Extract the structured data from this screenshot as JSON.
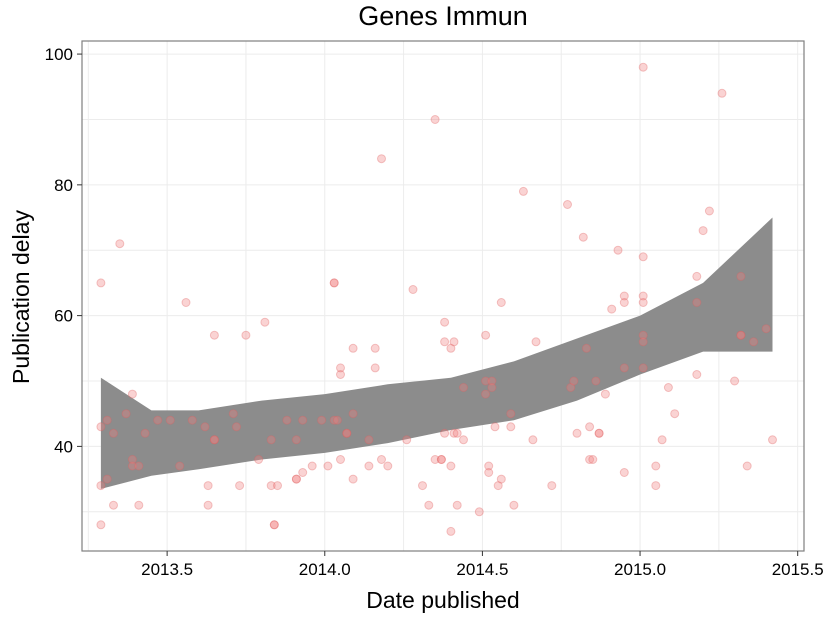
{
  "chart_data": {
    "type": "scatter",
    "title": "Genes Immun",
    "xlabel": "Date published",
    "ylabel": "Publication delay",
    "xlim": [
      2013.23,
      2015.52
    ],
    "ylim": [
      24,
      102
    ],
    "x_ticks": [
      "2013.5",
      "2014.0",
      "2014.5",
      "2015.0",
      "2015.5"
    ],
    "y_ticks": [
      "40",
      "60",
      "80",
      "100"
    ],
    "grid": true,
    "legend": "none",
    "colors": {
      "points": "#f08080",
      "point_stroke": "#e06060",
      "band": "#8c8c8c",
      "grid": "#ececec",
      "frame": "#7f7f7f"
    },
    "series": [
      {
        "points": [
          [
            2013.29,
            65
          ],
          [
            2013.29,
            43
          ],
          [
            2013.29,
            34
          ],
          [
            2013.29,
            28
          ],
          [
            2013.31,
            44
          ],
          [
            2013.31,
            35
          ],
          [
            2013.33,
            42
          ],
          [
            2013.33,
            31
          ],
          [
            2013.35,
            71
          ],
          [
            2013.37,
            45
          ],
          [
            2013.39,
            48
          ],
          [
            2013.39,
            38
          ],
          [
            2013.39,
            37
          ],
          [
            2013.41,
            37
          ],
          [
            2013.41,
            31
          ],
          [
            2013.43,
            42
          ],
          [
            2013.47,
            44
          ],
          [
            2013.51,
            44
          ],
          [
            2013.54,
            37
          ],
          [
            2013.56,
            62
          ],
          [
            2013.58,
            44
          ],
          [
            2013.62,
            43
          ],
          [
            2013.63,
            34
          ],
          [
            2013.63,
            31
          ],
          [
            2013.65,
            57
          ],
          [
            2013.65,
            41
          ],
          [
            2013.65,
            41
          ],
          [
            2013.71,
            45
          ],
          [
            2013.72,
            43
          ],
          [
            2013.73,
            34
          ],
          [
            2013.75,
            57
          ],
          [
            2013.79,
            38
          ],
          [
            2013.81,
            59
          ],
          [
            2013.83,
            41
          ],
          [
            2013.83,
            34
          ],
          [
            2013.84,
            28
          ],
          [
            2013.84,
            28
          ],
          [
            2013.85,
            34
          ],
          [
            2013.88,
            44
          ],
          [
            2013.91,
            41
          ],
          [
            2013.91,
            35
          ],
          [
            2013.91,
            35
          ],
          [
            2013.93,
            36
          ],
          [
            2013.93,
            44
          ],
          [
            2013.96,
            37
          ],
          [
            2013.99,
            44
          ],
          [
            2014.01,
            37
          ],
          [
            2014.03,
            65
          ],
          [
            2014.03,
            65
          ],
          [
            2014.03,
            44
          ],
          [
            2014.04,
            44
          ],
          [
            2014.05,
            51
          ],
          [
            2014.05,
            52
          ],
          [
            2014.05,
            38
          ],
          [
            2014.07,
            42
          ],
          [
            2014.07,
            42
          ],
          [
            2014.09,
            45
          ],
          [
            2014.09,
            55
          ],
          [
            2014.09,
            35
          ],
          [
            2014.14,
            41
          ],
          [
            2014.14,
            37
          ],
          [
            2014.16,
            55
          ],
          [
            2014.16,
            52
          ],
          [
            2014.18,
            84
          ],
          [
            2014.18,
            38
          ],
          [
            2014.2,
            37
          ],
          [
            2014.26,
            41
          ],
          [
            2014.28,
            64
          ],
          [
            2014.31,
            34
          ],
          [
            2014.33,
            31
          ],
          [
            2014.35,
            90
          ],
          [
            2014.35,
            38
          ],
          [
            2014.37,
            38
          ],
          [
            2014.37,
            38
          ],
          [
            2014.38,
            59
          ],
          [
            2014.38,
            56
          ],
          [
            2014.38,
            42
          ],
          [
            2014.4,
            55
          ],
          [
            2014.4,
            37
          ],
          [
            2014.4,
            27
          ],
          [
            2014.41,
            56
          ],
          [
            2014.41,
            42
          ],
          [
            2014.42,
            42
          ],
          [
            2014.42,
            31
          ],
          [
            2014.44,
            49
          ],
          [
            2014.44,
            41
          ],
          [
            2014.49,
            30
          ],
          [
            2014.51,
            57
          ],
          [
            2014.51,
            50
          ],
          [
            2014.51,
            48
          ],
          [
            2014.52,
            37
          ],
          [
            2014.52,
            36
          ],
          [
            2014.53,
            50
          ],
          [
            2014.53,
            49
          ],
          [
            2014.54,
            43
          ],
          [
            2014.55,
            34
          ],
          [
            2014.56,
            62
          ],
          [
            2014.56,
            35
          ],
          [
            2014.59,
            45
          ],
          [
            2014.59,
            43
          ],
          [
            2014.6,
            31
          ],
          [
            2014.63,
            79
          ],
          [
            2014.66,
            41
          ],
          [
            2014.67,
            56
          ],
          [
            2014.72,
            34
          ],
          [
            2014.77,
            77
          ],
          [
            2014.78,
            49
          ],
          [
            2014.79,
            50
          ],
          [
            2014.8,
            42
          ],
          [
            2014.82,
            72
          ],
          [
            2014.83,
            55
          ],
          [
            2014.84,
            43
          ],
          [
            2014.84,
            38
          ],
          [
            2014.85,
            38
          ],
          [
            2014.86,
            50
          ],
          [
            2014.87,
            42
          ],
          [
            2014.87,
            42
          ],
          [
            2014.89,
            48
          ],
          [
            2014.91,
            61
          ],
          [
            2014.93,
            70
          ],
          [
            2014.95,
            63
          ],
          [
            2014.95,
            62
          ],
          [
            2014.95,
            52
          ],
          [
            2014.95,
            36
          ],
          [
            2015.01,
            98
          ],
          [
            2015.01,
            69
          ],
          [
            2015.01,
            63
          ],
          [
            2015.01,
            62
          ],
          [
            2015.01,
            57
          ],
          [
            2015.01,
            56
          ],
          [
            2015.01,
            52
          ],
          [
            2015.05,
            37
          ],
          [
            2015.05,
            34
          ],
          [
            2015.07,
            41
          ],
          [
            2015.09,
            49
          ],
          [
            2015.11,
            45
          ],
          [
            2015.18,
            66
          ],
          [
            2015.18,
            62
          ],
          [
            2015.18,
            51
          ],
          [
            2015.2,
            73
          ],
          [
            2015.22,
            76
          ],
          [
            2015.26,
            94
          ],
          [
            2015.3,
            50
          ],
          [
            2015.32,
            66
          ],
          [
            2015.32,
            57
          ],
          [
            2015.32,
            57
          ],
          [
            2015.34,
            37
          ],
          [
            2015.36,
            56
          ],
          [
            2015.4,
            58
          ],
          [
            2015.42,
            41
          ]
        ]
      }
    ],
    "smooth": {
      "x": [
        2013.29,
        2013.45,
        2013.6,
        2013.8,
        2014.0,
        2014.2,
        2014.4,
        2014.6,
        2014.8,
        2015.0,
        2015.2,
        2015.42
      ],
      "lower": [
        33.5,
        35.5,
        36.5,
        38.0,
        39.0,
        40.5,
        42.5,
        44.0,
        47.0,
        51.0,
        54.5,
        54.5
      ],
      "upper": [
        50.5,
        45.5,
        45.5,
        47.0,
        48.0,
        49.5,
        50.5,
        53.0,
        56.5,
        60.0,
        65.0,
        75.0
      ]
    }
  }
}
